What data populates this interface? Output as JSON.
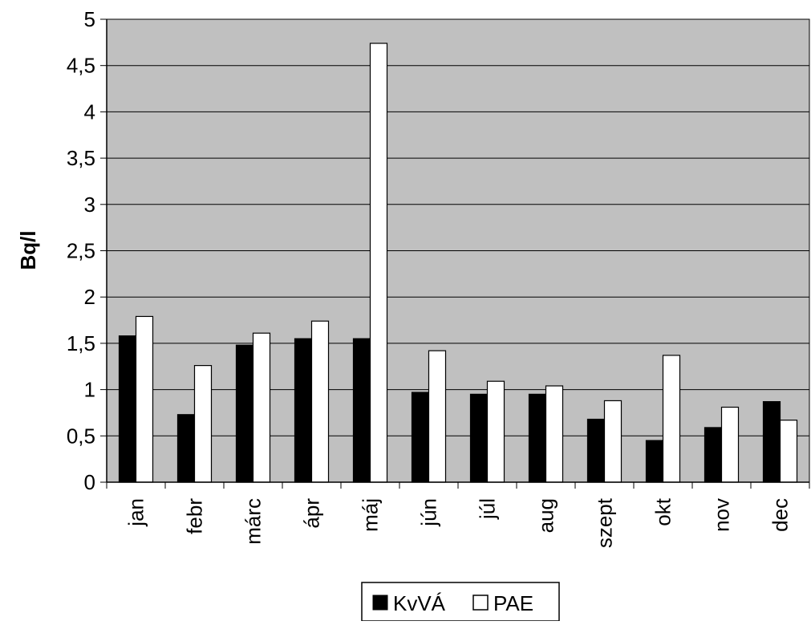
{
  "chart_data": {
    "type": "bar",
    "ylabel": "Bq/l",
    "ylim": [
      0,
      5
    ],
    "yticks": [
      "0",
      "0,5",
      "1",
      "1,5",
      "2",
      "2,5",
      "3",
      "3,5",
      "4",
      "4,5",
      "5"
    ],
    "grid": true,
    "plot_background": "#c0c0c0",
    "categories": [
      "jan",
      "febr",
      "márc",
      "ápr",
      "máj",
      "jún",
      "júl",
      "aug",
      "szept",
      "okt",
      "nov",
      "dec"
    ],
    "series": [
      {
        "name": "KvVÁ",
        "color": "#000000",
        "values": [
          1.58,
          0.73,
          1.48,
          1.55,
          1.55,
          0.97,
          0.95,
          0.95,
          0.68,
          0.45,
          0.59,
          0.87
        ]
      },
      {
        "name": "PAE",
        "color": "#ffffff",
        "values": [
          1.79,
          1.26,
          1.61,
          1.74,
          4.74,
          1.42,
          1.09,
          1.04,
          0.88,
          1.37,
          0.81,
          0.67
        ]
      }
    ],
    "legend_position": "bottom"
  }
}
